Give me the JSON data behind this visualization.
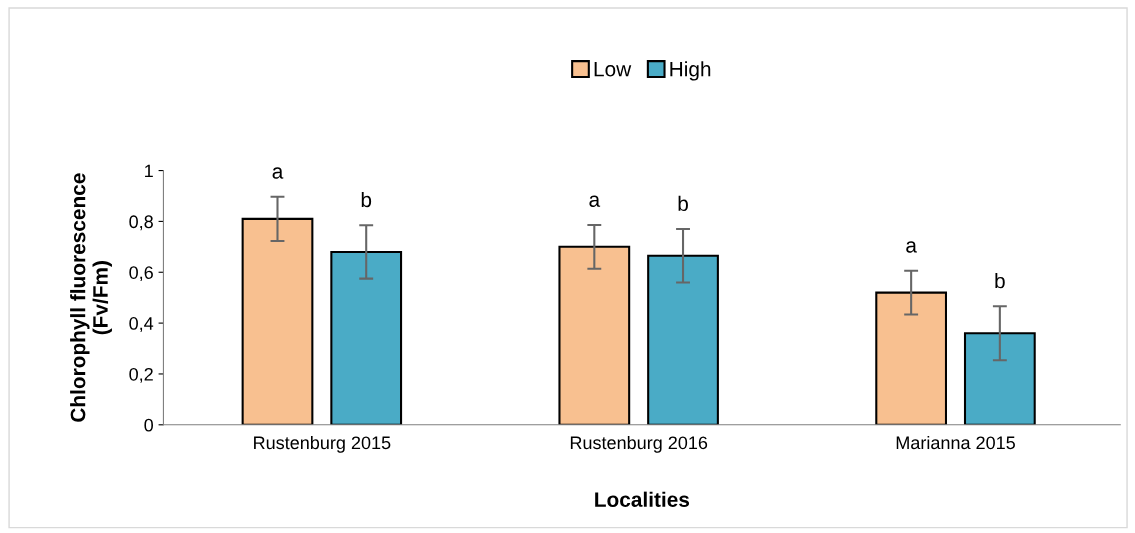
{
  "chart_data": {
    "type": "bar",
    "xlabel": "Localities",
    "ylabel": "Chlorophyll fluorescence\n(Fv/Fm)",
    "categories": [
      "Rustenburg 2015",
      "Rustenburg 2016",
      "Marianna 2015"
    ],
    "series": [
      {
        "name": "Low",
        "color": "#f8c090",
        "values": [
          0.81,
          0.7,
          0.52
        ],
        "errors": [
          0.087,
          0.086,
          0.086
        ]
      },
      {
        "name": "High",
        "color": "#4aabc6",
        "values": [
          0.68,
          0.665,
          0.36
        ],
        "errors": [
          0.105,
          0.105,
          0.106
        ]
      }
    ],
    "annotations": [
      "a",
      "b",
      "a",
      "b",
      "a",
      "b"
    ],
    "ylim": [
      0,
      1
    ],
    "yticks": [
      0,
      {
        "value": 0.2,
        "label": "0,2"
      },
      {
        "value": 0.4,
        "label": "0,4"
      },
      {
        "value": 0.6,
        "label": "0,6"
      },
      {
        "value": 0.8,
        "label": "0,8"
      },
      1
    ],
    "grid": false,
    "legend": "top"
  }
}
